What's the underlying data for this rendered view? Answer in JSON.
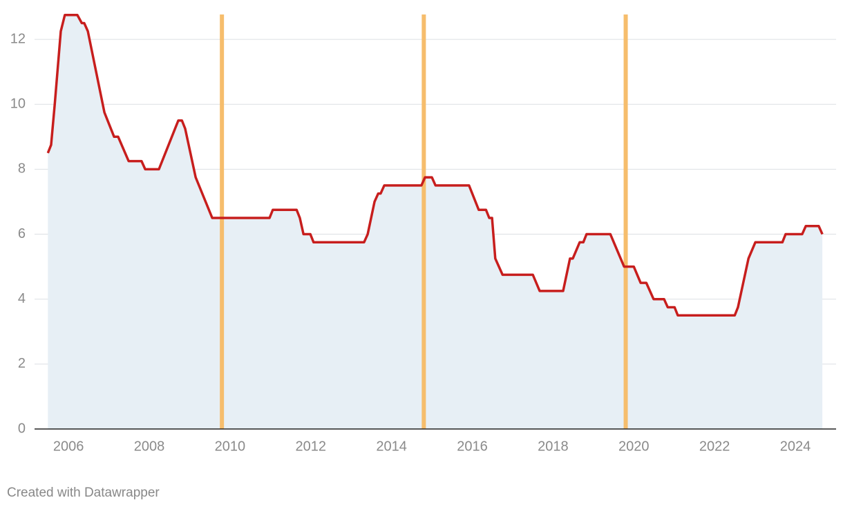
{
  "chart_data": {
    "type": "line",
    "x": [
      2005.49,
      2005.57,
      2005.66,
      2005.81,
      2005.91,
      2006.22,
      2006.33,
      2006.39,
      2006.48,
      2006.89,
      2007.13,
      2007.23,
      2007.49,
      2007.81,
      2007.9,
      2008.24,
      2008.72,
      2008.81,
      2008.89,
      2009.15,
      2009.56,
      2010.98,
      2011.06,
      2011.65,
      2011.73,
      2011.82,
      2011.99,
      2012.07,
      2013.32,
      2013.41,
      2013.58,
      2013.67,
      2013.73,
      2013.82,
      2014.74,
      2014.83,
      2015.0,
      2015.09,
      2015.92,
      2016.16,
      2016.34,
      2016.42,
      2016.49,
      2016.57,
      2016.75,
      2017.5,
      2017.67,
      2018.25,
      2018.42,
      2018.49,
      2018.66,
      2018.75,
      2018.83,
      2019.42,
      2019.76,
      2020.0,
      2020.17,
      2020.31,
      2020.49,
      2020.75,
      2020.84,
      2021.01,
      2021.09,
      2022.5,
      2022.58,
      2022.84,
      2023.01,
      2023.68,
      2023.76,
      2024.17,
      2024.26,
      2024.58,
      2024.67
    ],
    "series": [
      {
        "color": "#c71e1d",
        "values": [
          8.5,
          8.75,
          10,
          12.25,
          12.75,
          12.75,
          12.5,
          12.5,
          12.25,
          9.75,
          9,
          9,
          8.25,
          8.25,
          8,
          8,
          9.5,
          9.5,
          9.25,
          7.75,
          6.5,
          6.5,
          6.75,
          6.75,
          6.5,
          6,
          6,
          5.75,
          5.75,
          6,
          7,
          7.25,
          7.25,
          7.5,
          7.5,
          7.75,
          7.75,
          7.5,
          7.5,
          6.75,
          6.75,
          6.5,
          6.5,
          5.25,
          4.75,
          4.75,
          4.25,
          4.25,
          5.25,
          5.25,
          5.75,
          5.75,
          6,
          6,
          5,
          5,
          4.5,
          4.5,
          4,
          4,
          3.75,
          3.75,
          3.5,
          3.5,
          3.75,
          5.25,
          5.75,
          5.75,
          6,
          6,
          6.25,
          6.25,
          6
        ]
      }
    ],
    "area_color": "#e7eff5",
    "highlight_x": [
      2009.8,
      2014.8,
      2019.8
    ],
    "highlight_color": "#f6bd6c",
    "xlim": [
      2005.16,
      2025.01
    ],
    "xticks": [
      2006,
      2008,
      2010,
      2012,
      2014,
      2016,
      2018,
      2020,
      2022,
      2024
    ],
    "ylim": [
      0,
      12.8
    ],
    "yticks": [
      0,
      2,
      4,
      6,
      8,
      10,
      12
    ],
    "grid": true,
    "footer": "Created with Datawrapper"
  }
}
